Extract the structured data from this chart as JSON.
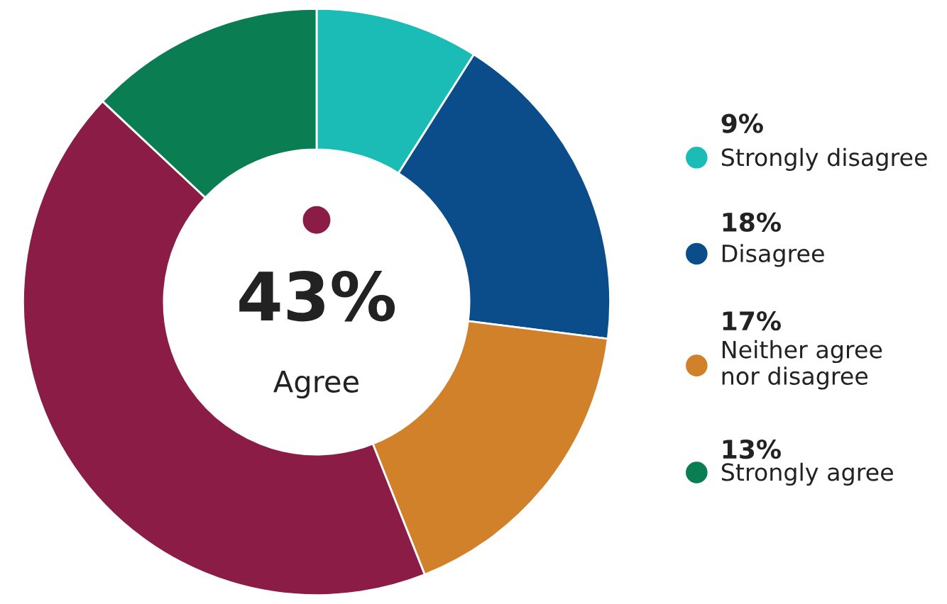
{
  "chart_data": {
    "type": "donut",
    "categories": [
      "Strongly disagree",
      "Disagree",
      "Neither agree\nnor disagree",
      "Agree",
      "Strongly agree"
    ],
    "values": [
      9,
      18,
      17,
      43,
      13
    ],
    "colors": [
      "#1bbcb6",
      "#0b4d8a",
      "#d0812a",
      "#8a1c45",
      "#0a7d52"
    ],
    "value_labels": [
      "9%",
      "18%",
      "17%",
      "43%",
      "13%"
    ],
    "legend": "right"
  }
}
